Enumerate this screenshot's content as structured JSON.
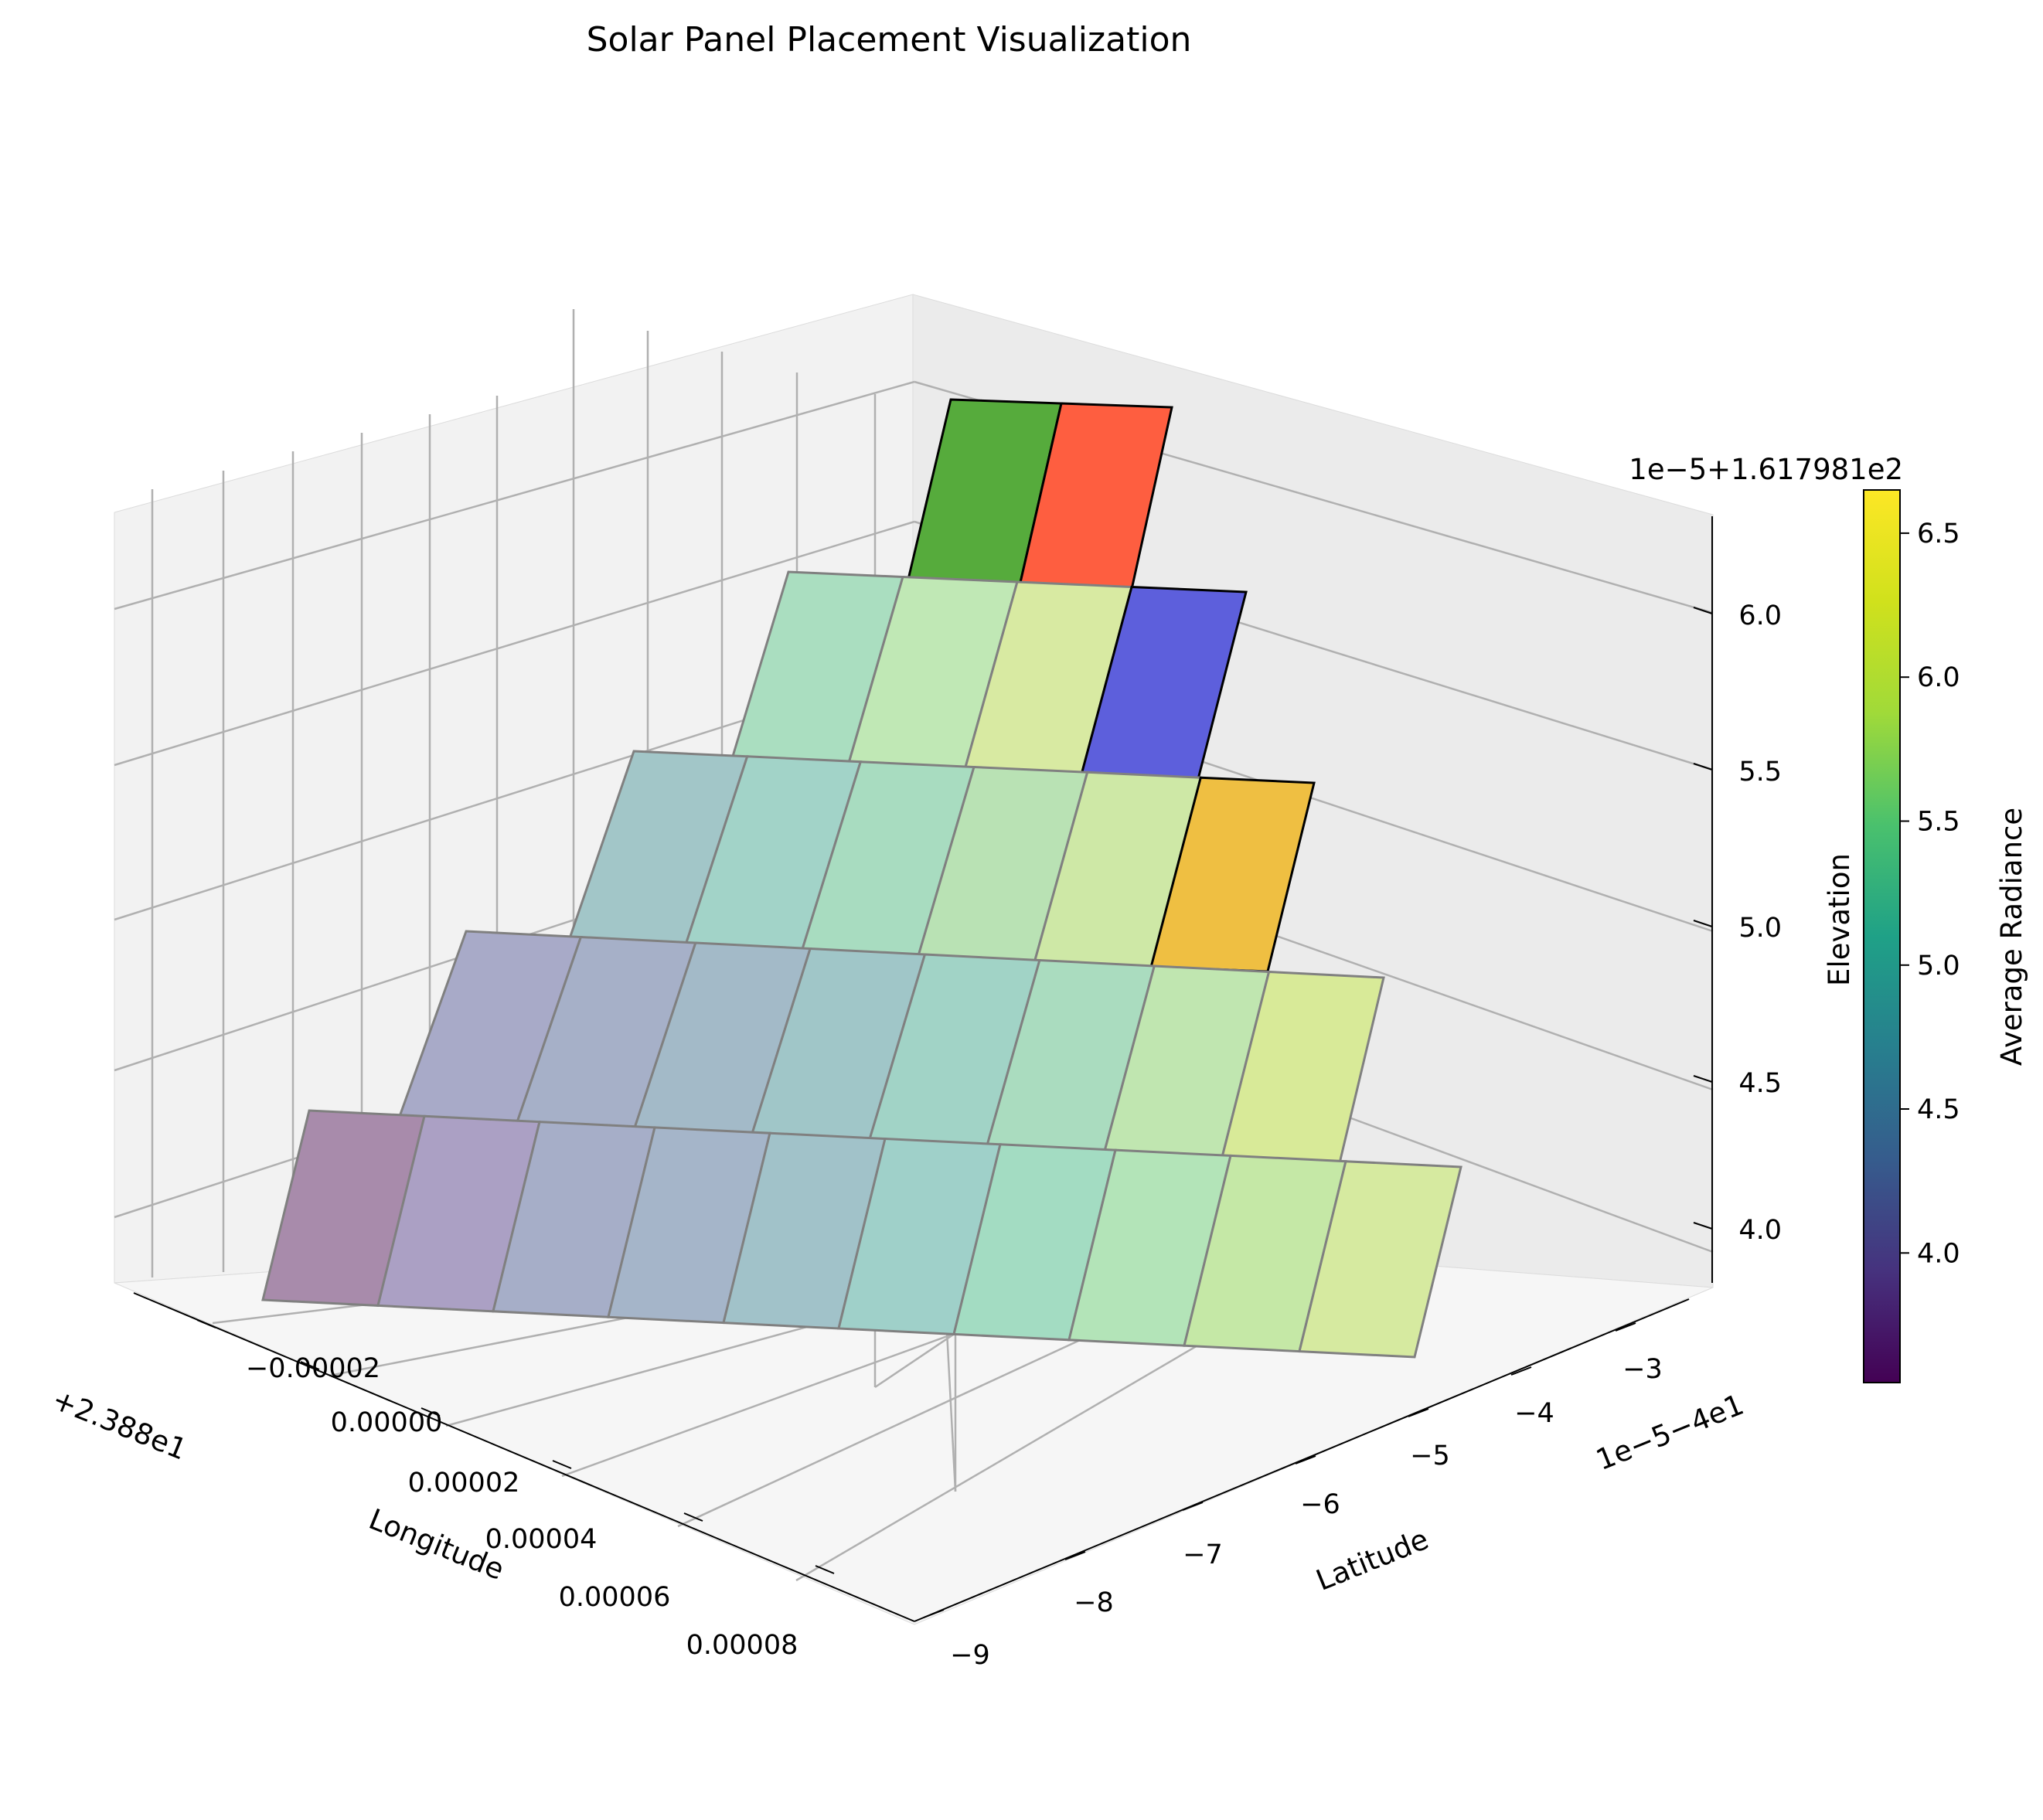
{
  "chart_data": {
    "type": "3d-bar-surface",
    "title": "Solar Panel Placement Visualization",
    "x_axis": {
      "label": "Longitude",
      "offset_text": "+2.388e1",
      "ticks": [
        "−0.00002",
        "0.00000",
        "0.00002",
        "0.00004",
        "0.00006",
        "0.00008"
      ]
    },
    "y_axis": {
      "label": "Latitude",
      "offset_text": "1e−5−4e1",
      "ticks": [
        "−9",
        "−8",
        "−7",
        "−6",
        "−5",
        "−4",
        "−3"
      ]
    },
    "z_axis": {
      "label": "Elevation",
      "offset_text": "1e−5+1.617981e2",
      "ticks": [
        "4.0",
        "4.5",
        "5.0",
        "5.5",
        "6.0"
      ]
    },
    "colorbar": {
      "label": "Average Radiance",
      "colormap": "viridis",
      "range": [
        3.55,
        6.65
      ],
      "ticks": [
        "4.0",
        "4.5",
        "5.0",
        "5.5",
        "6.0",
        "6.5"
      ]
    },
    "panel_rows": [
      {
        "row": 1,
        "count": 10,
        "colors": [
          "#a88bab",
          "#aba0c4",
          "#a6aec8",
          "#a5b5c9",
          "#a1c2c9",
          "#9fd0c9",
          "#a3dcc2",
          "#b3e4b8",
          "#c5e8a6",
          "#d6eaa0"
        ]
      },
      {
        "row": 2,
        "count": 8,
        "colors": [
          "#a8aac8",
          "#a6b0c8",
          "#a3bac8",
          "#a0c6c8",
          "#a1d3c6",
          "#aadcbf",
          "#c0e6b0",
          "#d8ea98"
        ]
      },
      {
        "row": 3,
        "count": 6,
        "colors": [
          "#a2c6c8",
          "#a2d3c8",
          "#a8dcc0",
          "#b9e2b4",
          "#cee8a6",
          "#efbf42"
        ]
      },
      {
        "row": 4,
        "count": 4,
        "colors": [
          "#aadec0",
          "#c0e8b5",
          "#d8eaa2",
          "#5d5fdc"
        ]
      },
      {
        "row": 5,
        "count": 2,
        "colors": [
          "#56ab3c",
          "#fe5e40"
        ]
      }
    ],
    "highlighted_panels": [
      {
        "color": "#fe5e40"
      },
      {
        "color": "#56ab3c"
      },
      {
        "color": "#5d5fdc"
      },
      {
        "color": "#efbf42"
      }
    ]
  }
}
